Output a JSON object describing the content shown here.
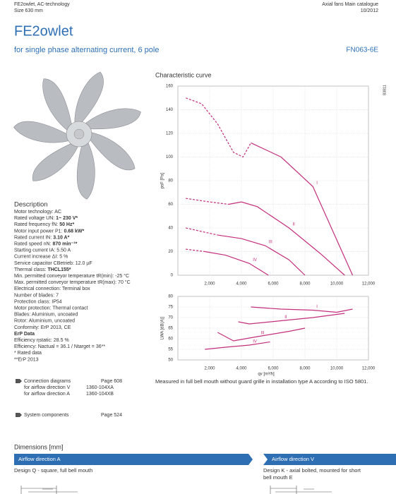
{
  "header": {
    "left": [
      "FE2owlet, AC-technology",
      "Size 630 mm"
    ],
    "right": [
      "Axial fans Main catalogue",
      "10/2012"
    ],
    "title": "FE2owlet",
    "subtitle": "for single phase alternating current, 6 pole",
    "code": "FN063-6E"
  },
  "description": {
    "title": "Description",
    "lines": [
      {
        "text": "Motor technology: AC"
      },
      {
        "text": "Rated voltage UN: ",
        "bold": "1~ 230 V*"
      },
      {
        "text": "Rated frequency fN: ",
        "bold": "50 Hz*"
      },
      {
        "text": "Motor input power P1: ",
        "bold": "0.68 kW*"
      },
      {
        "text": "Rated current IN: ",
        "bold": "3.10 A*"
      },
      {
        "text": "Rated speed nN: ",
        "bold": "870 min⁻¹*"
      },
      {
        "text": "Starting current IA: 5.50 A"
      },
      {
        "text": "Current increase ΔI: 5 %"
      },
      {
        "text": "Service capacitor CBetrieb: 12.0 µF"
      },
      {
        "text": "Thermal class: ",
        "bold": "THCL155*"
      },
      {
        "text": "Min. permitted conveyor temperature tR(min): -25 °C"
      },
      {
        "text": "Max. permitted conveyor temperature tR(max): 70 °C"
      },
      {
        "text": "Electrical connection: Terminal box"
      },
      {
        "text": "Number of blades: 7"
      },
      {
        "text": "Protection class: IP54"
      },
      {
        "text": "Motor protection: Thermal contact"
      },
      {
        "text": "Blades: Aluminium, uncoated"
      },
      {
        "text": "Rotor: Aluminium, uncoated"
      },
      {
        "text": "Conformity: ErP 2013, CE"
      },
      {
        "bold": "ErP Data"
      },
      {
        "text": "Efficiency ηstatic: 28.5 %"
      },
      {
        "text": "Efficiency: Nactual = 36.1 / Ntarget = 36**"
      },
      {
        "text": "* Rated data"
      },
      {
        "text": "**ErP 2013"
      }
    ]
  },
  "links": [
    {
      "label": "Connection diagrams",
      "page": "Page 608",
      "rows": [
        [
          "for airflow direction V",
          "1360-104XA"
        ],
        [
          "for airflow direction A",
          "1360-104XB"
        ]
      ]
    },
    {
      "label": "System components",
      "page": "Page 524",
      "rows": []
    }
  ],
  "note": "Measured in full bell mouth without guard grille in installation type A according to ISO 5801.",
  "chart_data": [
    {
      "type": "line",
      "title": "Characteristic curve",
      "code": "83811",
      "y_label": "psF [Pa]",
      "color": "#c42e7c",
      "ylim": [
        0,
        160
      ],
      "yticks": [
        0,
        20,
        40,
        60,
        80,
        100,
        120,
        140,
        160
      ],
      "xlim": [
        0,
        12000
      ],
      "xticks": [
        {
          "value": 2000,
          "label": "2,000"
        },
        {
          "value": 4000,
          "label": "4,000"
        },
        {
          "value": 6000,
          "label": "6,000"
        },
        {
          "value": 8000,
          "label": "8,000"
        },
        {
          "value": 10000,
          "label": "10,000"
        },
        {
          "value": 12000,
          "label": "12,000"
        }
      ],
      "series": [
        {
          "name": "I",
          "dashed": {
            "x": [
              500,
              1500,
              2500,
              3500,
              4100,
              4600
            ],
            "values": [
              150,
              145,
              128,
              104,
              100,
              112
            ]
          },
          "solid": {
            "x": [
              4600,
              6500,
              8500,
              10000,
              11000
            ],
            "values": [
              112,
              100,
              75,
              30,
              0
            ]
          }
        },
        {
          "name": "II",
          "dashed": {
            "x": [
              500,
              2000,
              3200
            ],
            "values": [
              65,
              62,
              60
            ]
          },
          "solid": {
            "x": [
              3200,
              4000,
              5000,
              7000,
              9000,
              10500
            ],
            "values": [
              60,
              62,
              58,
              40,
              18,
              0
            ]
          }
        },
        {
          "name": "III",
          "dashed": {
            "x": [
              500,
              2500
            ],
            "values": [
              40,
              34
            ]
          },
          "solid": {
            "x": [
              2500,
              4000,
              5500,
              7000,
              8000
            ],
            "values": [
              34,
              31,
              25,
              13,
              0
            ]
          }
        },
        {
          "name": "IV",
          "dashed": {
            "x": [
              500,
              1700
            ],
            "values": [
              22,
              20
            ]
          },
          "solid": {
            "x": [
              1700,
              3000,
              4500,
              5700
            ],
            "values": [
              20,
              17,
              10,
              0
            ]
          }
        }
      ]
    },
    {
      "type": "line",
      "y_label": "LWA [dB(A)]",
      "x_label": "qv [m³/h]",
      "color": "#c42e7c",
      "ylim": [
        50,
        80
      ],
      "yticks": [
        50,
        55,
        60,
        65,
        70,
        75,
        80
      ],
      "xlim": [
        0,
        12000
      ],
      "xticks": [
        {
          "value": 2000,
          "label": "2,000"
        },
        {
          "value": 4000,
          "label": "4,000"
        },
        {
          "value": 6000,
          "label": "6,000"
        },
        {
          "value": 8000,
          "label": "8,000"
        },
        {
          "value": 10000,
          "label": "10,000"
        },
        {
          "value": 12000,
          "label": "12,000"
        }
      ],
      "series": [
        {
          "name": "I",
          "solid": {
            "x": [
              4600,
              6500,
              8500,
              10000,
              11000
            ],
            "values": [
              75,
              74,
              73.5,
              72.5,
              74
            ]
          }
        },
        {
          "name": "II",
          "solid": {
            "x": [
              3800,
              4500,
              6500,
              8500,
              10500
            ],
            "values": [
              68,
              67,
              68.5,
              70,
              72
            ]
          }
        },
        {
          "name": "III",
          "solid": {
            "x": [
              2500,
              3500,
              5000,
              7000,
              8000
            ],
            "values": [
              63,
              59,
              61,
              63.5,
              65
            ]
          }
        },
        {
          "name": "IV",
          "solid": {
            "x": [
              1700,
              3000,
              4500,
              5800
            ],
            "values": [
              55,
              56,
              57,
              58.5
            ]
          }
        }
      ]
    }
  ],
  "dimensions": {
    "title": "Dimensions [mm]",
    "left_bar": "Airflow direction A",
    "right_bar": "Airflow direction V",
    "left_design": "Design Q - square, full bell mouth",
    "right_design": [
      "Design K - axial bolted, mounted for short",
      "bell mouth E"
    ]
  }
}
